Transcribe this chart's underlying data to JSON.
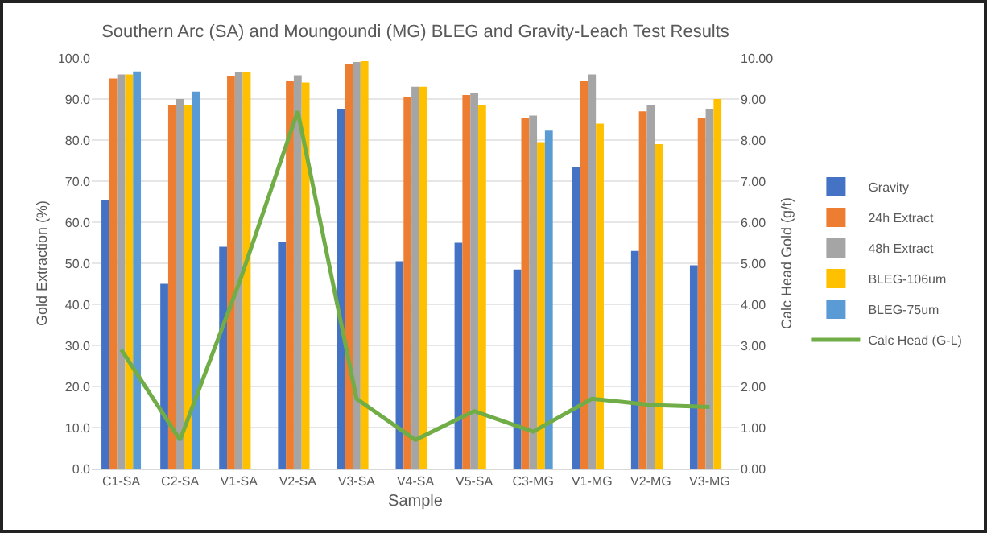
{
  "chart_data": {
    "type": "bar",
    "title": "Southern Arc (SA) and Moungoundi (MG) BLEG and Gravity-Leach Test Results",
    "xlabel": "Sample",
    "ylabel": "Gold Extraction (%)",
    "y2label": "Calc Head Gold (g/t)",
    "categories": [
      "C1-SA",
      "C2-SA",
      "V1-SA",
      "V2-SA",
      "V3-SA",
      "V4-SA",
      "V5-SA",
      "C3-MG",
      "V1-MG",
      "V2-MG",
      "V3-MG"
    ],
    "series": [
      {
        "name": "Gravity",
        "color": "#4472c4",
        "values": [
          65.5,
          45,
          54,
          55.3,
          87.5,
          50.5,
          55,
          48.5,
          73.5,
          53,
          49.5
        ]
      },
      {
        "name": "24h Extract",
        "color": "#ed7d31",
        "values": [
          95,
          88.5,
          95.5,
          94.5,
          98.5,
          90.5,
          91,
          85.5,
          94.5,
          87,
          85.5
        ]
      },
      {
        "name": "48h Extract",
        "color": "#a5a5a5",
        "values": [
          96,
          90,
          96.5,
          95.8,
          99,
          93,
          91.5,
          86,
          96,
          88.5,
          87.5
        ]
      },
      {
        "name": "BLEG-106um",
        "color": "#ffc000",
        "values": [
          96,
          88.5,
          96.5,
          94,
          99.2,
          93,
          88.5,
          79.5,
          84,
          79,
          90
        ]
      },
      {
        "name": "BLEG-75um",
        "color": "#5b9bd5",
        "values": [
          96.7,
          91.8,
          null,
          null,
          null,
          null,
          null,
          82.3,
          null,
          null,
          null
        ]
      },
      {
        "name": "Calc Head (G-L)",
        "type": "line",
        "axis": "y2",
        "color": "#70ad47",
        "values": [
          2.9,
          0.7,
          4.5,
          8.7,
          1.7,
          0.7,
          1.4,
          0.9,
          1.7,
          1.55,
          1.5
        ]
      }
    ],
    "ylim": [
      0,
      100
    ],
    "yticks": [
      {
        "value": 0,
        "label": "0.0"
      },
      {
        "value": 10,
        "label": "10.0"
      },
      {
        "value": 20,
        "label": "20.0"
      },
      {
        "value": 30,
        "label": "30.0"
      },
      {
        "value": 40,
        "label": "40.0"
      },
      {
        "value": 50,
        "label": "50.0"
      },
      {
        "value": 60,
        "label": "60.0"
      },
      {
        "value": 70,
        "label": "70.0"
      },
      {
        "value": 80,
        "label": "80.0"
      },
      {
        "value": 90,
        "label": "90.0"
      },
      {
        "value": 100,
        "label": "100.0"
      }
    ],
    "y2lim": [
      0,
      10
    ],
    "y2ticks": [
      {
        "value": 0,
        "label": "0.00"
      },
      {
        "value": 1,
        "label": "1.00"
      },
      {
        "value": 2,
        "label": "2.00"
      },
      {
        "value": 3,
        "label": "3.00"
      },
      {
        "value": 4,
        "label": "4.00"
      },
      {
        "value": 5,
        "label": "5.00"
      },
      {
        "value": 6,
        "label": "6.00"
      },
      {
        "value": 7,
        "label": "7.00"
      },
      {
        "value": 8,
        "label": "8.00"
      },
      {
        "value": 9,
        "label": "9.00"
      },
      {
        "value": 10,
        "label": "10.00"
      }
    ],
    "grid": "y",
    "legend": "right",
    "marker": "none"
  }
}
